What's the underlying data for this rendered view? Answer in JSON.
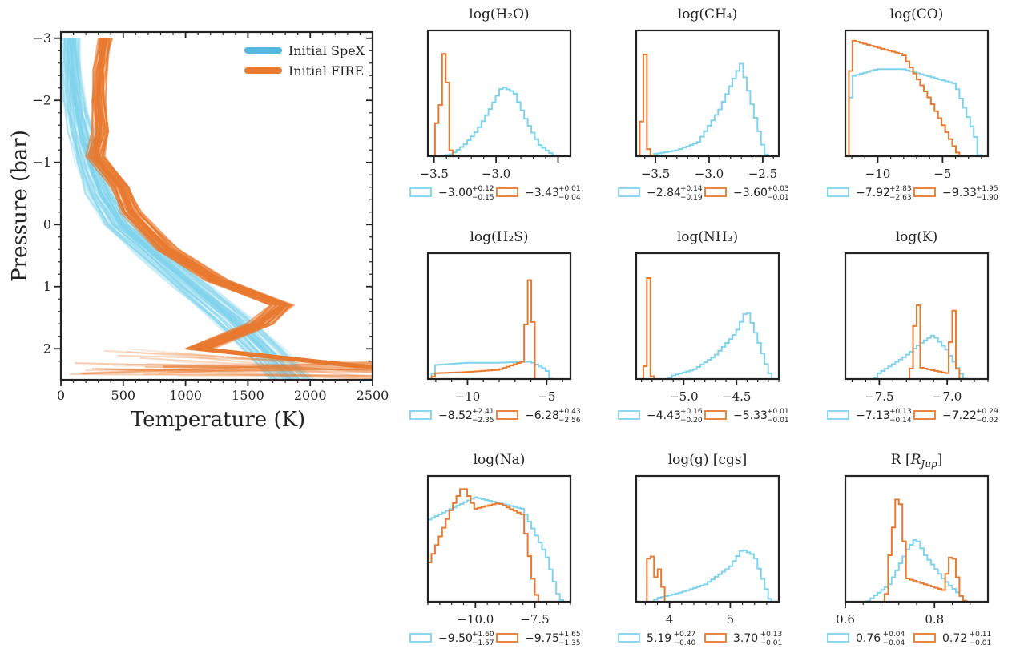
{
  "colors": {
    "speX": "#7fd3ec",
    "fire": "#e8792f",
    "speX_legend": "#57b7dc",
    "axis": "#222222"
  },
  "chart_data": [
    {
      "type": "line",
      "xlabel": "Temperature (K)",
      "ylabel": "Pressure (bar)",
      "xlim": [
        0,
        2500
      ],
      "ylim": [
        2.5,
        -3.1
      ],
      "xticks": [
        0,
        500,
        1000,
        1500,
        2000,
        2500
      ],
      "yticks": [
        -3,
        -2,
        -1,
        0,
        1,
        2
      ],
      "ytick_labels": [
        "−3",
        "−2",
        "−1",
        "0",
        "1",
        "2"
      ],
      "legend": {
        "placement": "top-right",
        "entries": [
          "Initial SpeX",
          "Initial FIRE"
        ]
      },
      "series": [
        {
          "name": "Initial SpeX",
          "pressure": [
            -3.0,
            -2.5,
            -2.0,
            -1.5,
            -1.0,
            -0.5,
            0.0,
            0.5,
            1.0,
            1.5,
            2.0,
            2.5
          ],
          "temperature": [
            80,
            90,
            110,
            160,
            230,
            320,
            480,
            760,
            1060,
            1360,
            1620,
            1850
          ]
        },
        {
          "name": "Initial FIRE",
          "pressure": [
            -3.0,
            -2.5,
            -2.0,
            -1.5,
            -1.1,
            -0.6,
            -0.2,
            0.4,
            0.9,
            1.3,
            1.6,
            2.0,
            2.3
          ],
          "temperature": [
            350,
            320,
            300,
            320,
            280,
            480,
            560,
            850,
            1250,
            1780,
            1600,
            1100,
            2500
          ]
        }
      ]
    },
    {
      "type": "histogram",
      "title": "log(H₂O)",
      "xticks": [
        -3.5,
        -3.0,
        -2.5
      ],
      "xtick_labels": [
        "−3.5",
        "−3.0",
        ""
      ],
      "xlim": [
        -3.55,
        -2.4
      ],
      "series": [
        {
          "name": "SpeX",
          "centers": [
            -3.45,
            -3.35,
            -3.25,
            -3.15,
            -3.05,
            -2.95,
            -2.85,
            -2.75,
            -2.65,
            -2.55
          ],
          "counts": [
            0,
            2,
            10,
            22,
            40,
            60,
            55,
            30,
            10,
            2
          ]
        },
        {
          "name": "FIRE",
          "centers": [
            -3.46,
            -3.44,
            -3.42,
            -3.4,
            -3.38
          ],
          "counts": [
            60,
            30,
            90,
            100,
            10
          ]
        }
      ],
      "legend": [
        {
          "center": "−3.00",
          "plus": "+0.12",
          "minus": "−0.15"
        },
        {
          "center": "−3.43",
          "plus": "+0.01",
          "minus": "−0.04"
        }
      ]
    },
    {
      "type": "histogram",
      "title": "log(CH₄)",
      "xticks": [
        -3.5,
        -3.0,
        -2.5
      ],
      "xtick_labels": [
        "−3.5",
        "−3.0",
        "−2.5"
      ],
      "xlim": [
        -3.68,
        -2.35
      ],
      "series": [
        {
          "name": "SpeX",
          "centers": [
            -3.5,
            -3.3,
            -3.1,
            -2.9,
            -2.8,
            -2.7,
            -2.6,
            -2.5
          ],
          "counts": [
            2,
            5,
            12,
            40,
            60,
            80,
            45,
            10
          ]
        },
        {
          "name": "FIRE",
          "centers": [
            -3.62,
            -3.6,
            -3.58,
            -3.56
          ],
          "counts": [
            40,
            100,
            20,
            3
          ]
        }
      ],
      "legend": [
        {
          "center": "−2.84",
          "plus": "+0.14",
          "minus": "−0.19"
        },
        {
          "center": "−3.60",
          "plus": "+0.03",
          "minus": "−0.01"
        }
      ]
    },
    {
      "type": "histogram",
      "title": "log(CO)",
      "xticks": [
        -10,
        -5
      ],
      "xtick_labels": [
        "−10",
        "−5"
      ],
      "xlim": [
        -12.5,
        -1.5
      ],
      "series": [
        {
          "name": "SpeX",
          "centers": [
            -12,
            -10,
            -8,
            -6,
            -4,
            -2.5
          ],
          "counts": [
            55,
            60,
            60,
            55,
            50,
            15
          ]
        },
        {
          "name": "FIRE",
          "centers": [
            -12,
            -10,
            -8,
            -6,
            -4
          ],
          "counts": [
            80,
            75,
            70,
            40,
            5
          ]
        }
      ],
      "legend": [
        {
          "center": "−7.92",
          "plus": "+2.83",
          "minus": "−2.63"
        },
        {
          "center": "−9.33",
          "plus": "+1.95",
          "minus": "−1.90"
        }
      ]
    },
    {
      "type": "histogram",
      "title": "log(H₂S)",
      "xticks": [
        -10,
        -5
      ],
      "xtick_labels": [
        "−10",
        "−5"
      ],
      "xlim": [
        -12.5,
        -3.5
      ],
      "series": [
        {
          "name": "SpeX",
          "centers": [
            -12,
            -10,
            -8,
            -6,
            -5
          ],
          "counts": [
            12,
            14,
            14,
            15,
            8
          ]
        },
        {
          "name": "FIRE",
          "centers": [
            -12,
            -10,
            -8,
            -6.5,
            -6
          ],
          "counts": [
            5,
            6,
            8,
            15,
            100
          ]
        }
      ],
      "legend": [
        {
          "center": "−8.52",
          "plus": "+2.41",
          "minus": "−2.35"
        },
        {
          "center": "−6.28",
          "plus": "+0.43",
          "minus": "−2.56"
        }
      ]
    },
    {
      "type": "histogram",
      "title": "log(NH₃)",
      "xticks": [
        -5.0,
        -4.5
      ],
      "xtick_labels": [
        "−5.0",
        "−4.5"
      ],
      "xlim": [
        -5.45,
        -4.1
      ],
      "series": [
        {
          "name": "SpeX",
          "centers": [
            -5.1,
            -4.9,
            -4.7,
            -4.5,
            -4.4,
            -4.3,
            -4.2
          ],
          "counts": [
            3,
            8,
            20,
            40,
            60,
            35,
            8
          ]
        },
        {
          "name": "FIRE",
          "centers": [
            -5.34,
            -5.33,
            -5.32
          ],
          "counts": [
            30,
            100,
            5
          ]
        }
      ],
      "legend": [
        {
          "center": "−4.43",
          "plus": "+0.16",
          "minus": "−0.20"
        },
        {
          "center": "−5.33",
          "plus": "+0.01",
          "minus": "−0.01"
        }
      ]
    },
    {
      "type": "histogram",
      "title": "log(K)",
      "xticks": [
        -7.5,
        -7.0
      ],
      "xtick_labels": [
        "−7.5",
        "−7.0"
      ],
      "xlim": [
        -7.75,
        -6.7
      ],
      "series": [
        {
          "name": "SpeX",
          "centers": [
            -7.5,
            -7.3,
            -7.2,
            -7.1,
            -7.0,
            -6.9
          ],
          "counts": [
            5,
            20,
            30,
            38,
            25,
            5
          ]
        },
        {
          "name": "FIRE",
          "centers": [
            -7.24,
            -7.22,
            -7.2,
            -7.0,
            -6.95
          ],
          "counts": [
            40,
            100,
            10,
            5,
            60
          ]
        }
      ],
      "legend": [
        {
          "center": "−7.13",
          "plus": "+0.13",
          "minus": "−0.14"
        },
        {
          "center": "−7.22",
          "plus": "+0.29",
          "minus": "−0.02"
        }
      ]
    },
    {
      "type": "histogram",
      "title": "log(Na)",
      "xticks": [
        -10.0,
        -7.5
      ],
      "xtick_labels": [
        "−10.0",
        "−7.5"
      ],
      "xlim": [
        -12.0,
        -6.0
      ],
      "series": [
        {
          "name": "SpeX",
          "centers": [
            -12,
            -11,
            -10,
            -9,
            -8,
            -7,
            -6.5
          ],
          "counts": [
            70,
            80,
            90,
            85,
            80,
            40,
            5
          ]
        },
        {
          "name": "FIRE",
          "centers": [
            -12,
            -11,
            -10.5,
            -10,
            -9,
            -8,
            -7.5
          ],
          "counts": [
            30,
            80,
            100,
            80,
            85,
            75,
            10
          ]
        }
      ],
      "legend": [
        {
          "center": "−9.50",
          "plus": "+1.60",
          "minus": "−1.57"
        },
        {
          "center": "−9.75",
          "plus": "+1.65",
          "minus": "−1.35"
        }
      ]
    },
    {
      "type": "histogram",
      "title": "log(g) [cgs]",
      "xticks": [
        4,
        5
      ],
      "xtick_labels": [
        "4",
        "5"
      ],
      "xlim": [
        3.45,
        5.8
      ],
      "series": [
        {
          "name": "SpeX",
          "centers": [
            3.8,
            4.2,
            4.6,
            5.0,
            5.2,
            5.4,
            5.6
          ],
          "counts": [
            3,
            8,
            15,
            30,
            45,
            40,
            10
          ]
        },
        {
          "name": "FIRE",
          "centers": [
            3.7,
            3.72,
            3.85
          ],
          "counts": [
            100,
            15,
            30
          ]
        }
      ],
      "legend": [
        {
          "center": "5.19",
          "plus": "+0.27",
          "minus": "−0.40"
        },
        {
          "center": "3.70",
          "plus": "+0.13",
          "minus": "−0.01"
        }
      ]
    },
    {
      "type": "histogram",
      "title": "R [RJup]",
      "xticks": [
        0.6,
        0.8
      ],
      "xtick_labels": [
        "0.6",
        "0.8"
      ],
      "xlim": [
        0.6,
        0.92
      ],
      "series": [
        {
          "name": "SpeX",
          "centers": [
            0.66,
            0.7,
            0.74,
            0.76,
            0.78,
            0.82,
            0.86
          ],
          "counts": [
            3,
            15,
            45,
            55,
            40,
            20,
            5
          ]
        },
        {
          "name": "FIRE",
          "centers": [
            0.7,
            0.72,
            0.74,
            0.82,
            0.84,
            0.86
          ],
          "counts": [
            40,
            100,
            20,
            10,
            45,
            5
          ]
        }
      ],
      "legend": [
        {
          "center": "0.76",
          "plus": "+0.04",
          "minus": "−0.04"
        },
        {
          "center": "0.72",
          "plus": "+0.11",
          "minus": "−0.01"
        }
      ]
    }
  ]
}
